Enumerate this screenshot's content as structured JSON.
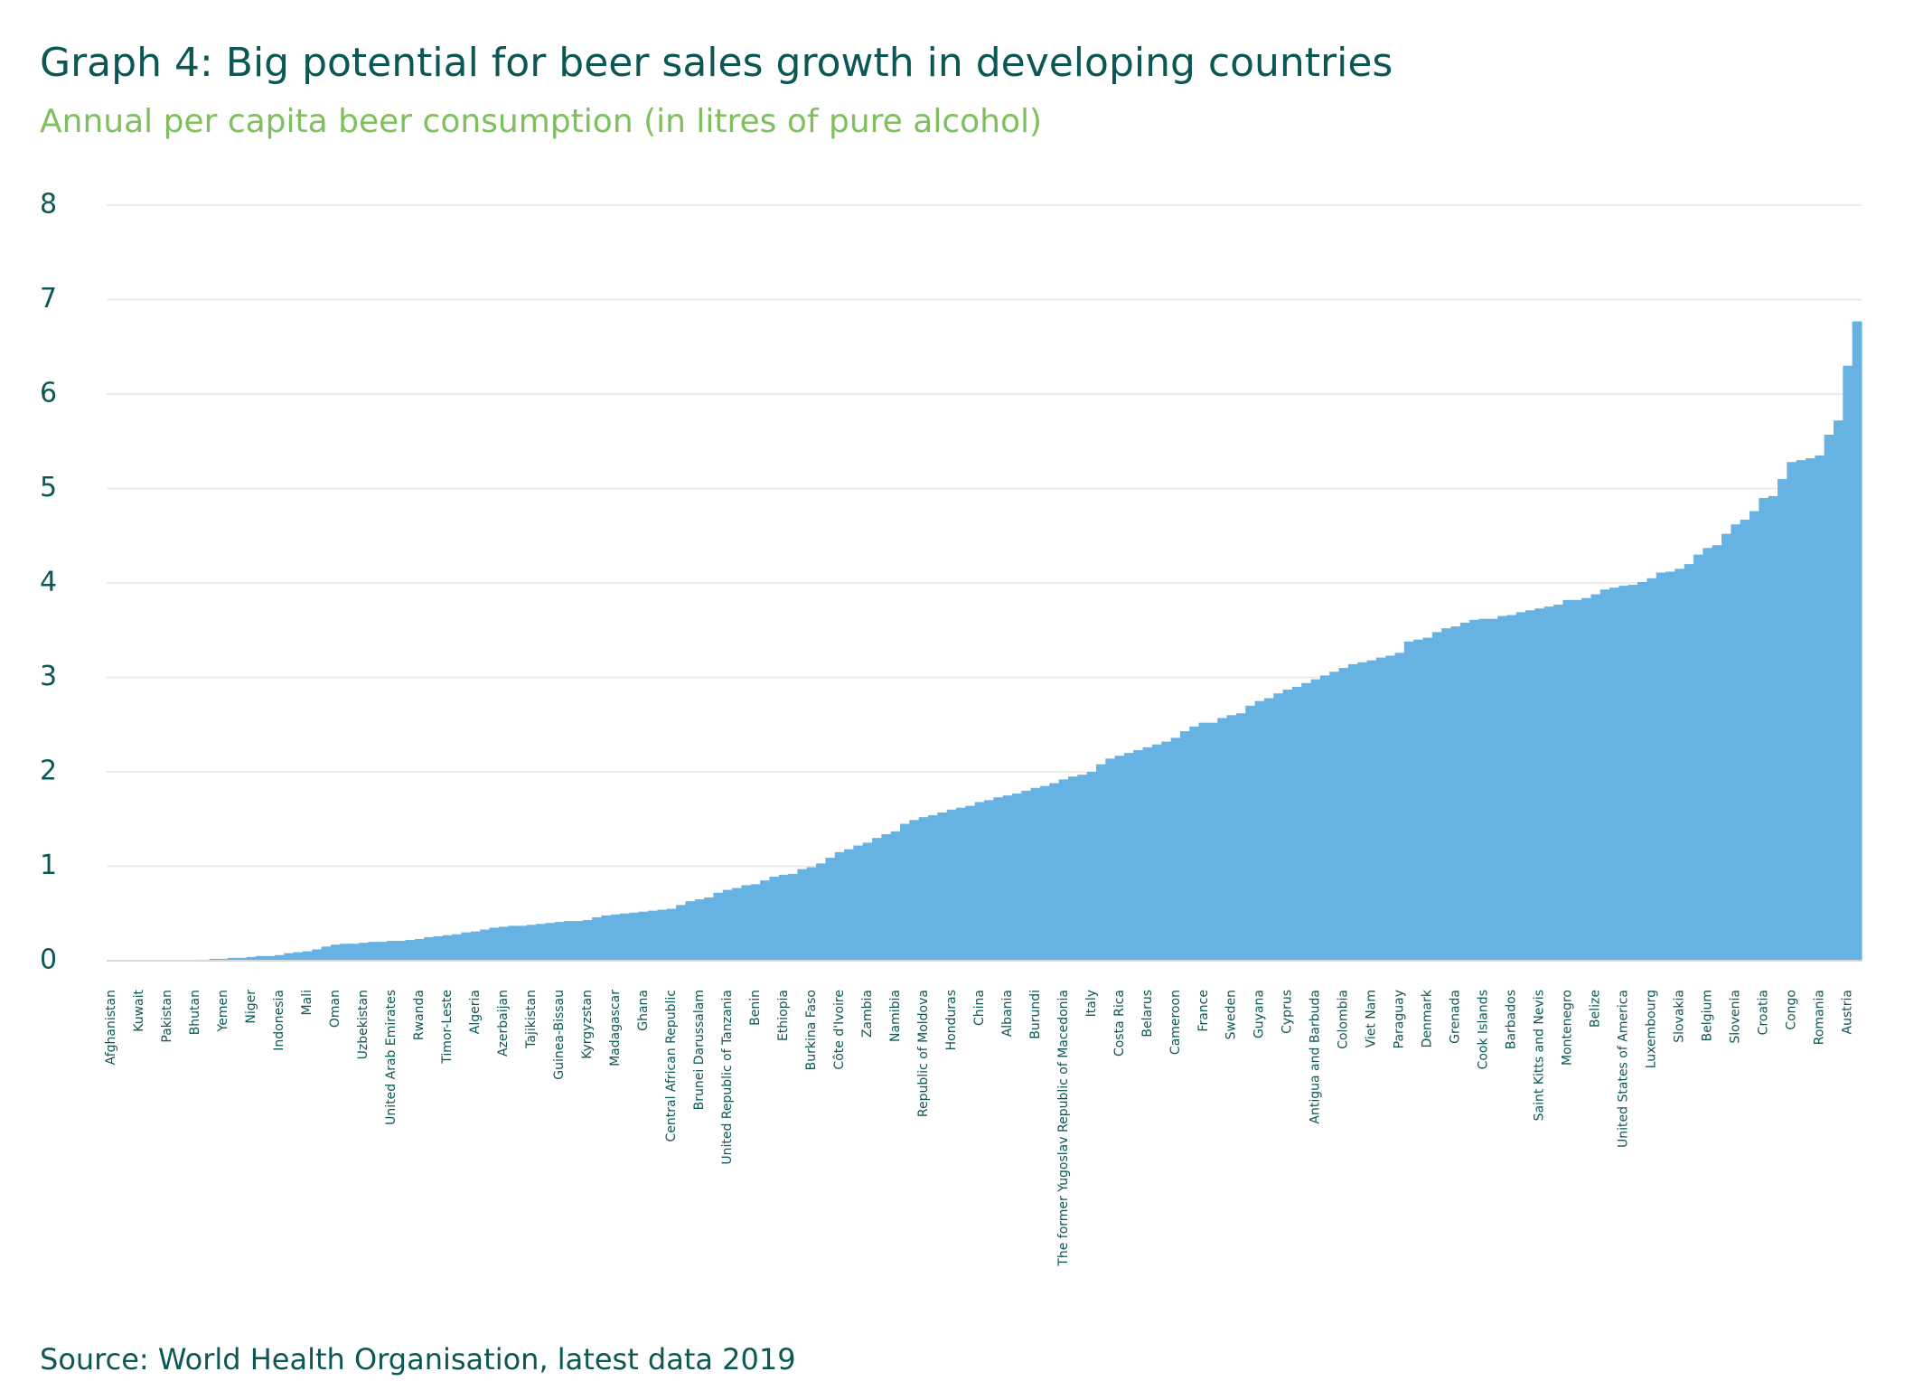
{
  "chart_data": {
    "type": "bar",
    "title": "Graph 4: Big potential for beer sales growth in developing countries",
    "subtitle": "Annual per capita beer consumption (in litres of pure alcohol)",
    "source": "Source: World Health Organisation, latest data 2019",
    "color": "#66b2e3",
    "grid": true,
    "ylim": [
      0,
      8
    ],
    "yticks": [
      0,
      1,
      2,
      3,
      4,
      5,
      6,
      7,
      8
    ],
    "categories": [
      "Afghanistan",
      null,
      null,
      "Kuwait",
      null,
      null,
      "Pakistan",
      null,
      null,
      "Bhutan",
      null,
      null,
      "Yemen",
      null,
      null,
      "Niger",
      null,
      null,
      "Indonesia",
      null,
      null,
      "Mali",
      null,
      null,
      "Oman",
      null,
      null,
      "Uzbekistan",
      null,
      null,
      "United Arab Emirates",
      null,
      null,
      "Rwanda",
      null,
      null,
      "Timor-Leste",
      null,
      null,
      "Algeria",
      null,
      null,
      "Azerbaijan",
      null,
      null,
      "Tajikistan",
      null,
      null,
      "Guinea-Bissau",
      null,
      null,
      "Kyrgyzstan",
      null,
      null,
      "Madagascar",
      null,
      null,
      "Ghana",
      null,
      null,
      "Central African Republic",
      null,
      null,
      "Brunei Darussalam",
      null,
      null,
      "United Republic of Tanzania",
      null,
      null,
      "Benin",
      null,
      null,
      "Ethiopia",
      null,
      null,
      "Burkina Faso",
      null,
      null,
      "Côte d'Ivoire",
      null,
      null,
      "Zambia",
      null,
      null,
      "Namibia",
      null,
      null,
      "Republic of Moldova",
      null,
      null,
      "Honduras",
      null,
      null,
      "China",
      null,
      null,
      "Albania",
      null,
      null,
      "Burundi",
      null,
      null,
      "The former Yugoslav Republic of Macedonia",
      null,
      null,
      "Italy",
      null,
      null,
      "Costa Rica",
      null,
      null,
      "Belarus",
      null,
      null,
      "Cameroon",
      null,
      null,
      "France",
      null,
      null,
      "Sweden",
      null,
      null,
      "Guyana",
      null,
      null,
      "Cyprus",
      null,
      null,
      "Antigua and Barbuda",
      null,
      null,
      "Colombia",
      null,
      null,
      "Viet Nam",
      null,
      null,
      "Paraguay",
      null,
      null,
      "Denmark",
      null,
      null,
      "Grenada",
      null,
      null,
      "Cook Islands",
      null,
      null,
      "Barbados",
      null,
      null,
      "Saint Kitts and Nevis",
      null,
      null,
      "Montenegro",
      null,
      null,
      "Belize",
      null,
      null,
      "United States of America",
      null,
      null,
      "Luxembourg",
      null,
      null,
      "Slovakia",
      null,
      null,
      "Belgium",
      null,
      null,
      "Slovenia",
      null,
      null,
      "Croatia",
      null,
      null,
      "Congo",
      null,
      null,
      "Romania",
      null,
      null,
      "Austria",
      null
    ],
    "values": [
      0,
      0,
      0,
      0,
      0,
      0,
      0,
      0,
      0,
      0.01,
      0.01,
      0.02,
      0.02,
      0.03,
      0.03,
      0.04,
      0.05,
      0.05,
      0.06,
      0.08,
      0.09,
      0.1,
      0.12,
      0.15,
      0.17,
      0.18,
      0.18,
      0.19,
      0.2,
      0.2,
      0.21,
      0.21,
      0.22,
      0.23,
      0.25,
      0.26,
      0.27,
      0.28,
      0.3,
      0.31,
      0.33,
      0.35,
      0.36,
      0.37,
      0.37,
      0.38,
      0.39,
      0.4,
      0.41,
      0.42,
      0.42,
      0.43,
      0.46,
      0.48,
      0.49,
      0.5,
      0.51,
      0.52,
      0.53,
      0.54,
      0.55,
      0.59,
      0.63,
      0.65,
      0.67,
      0.72,
      0.75,
      0.77,
      0.8,
      0.81,
      0.85,
      0.89,
      0.91,
      0.92,
      0.97,
      0.99,
      1.03,
      1.09,
      1.15,
      1.18,
      1.22,
      1.25,
      1.3,
      1.34,
      1.37,
      1.45,
      1.49,
      1.52,
      1.54,
      1.57,
      1.6,
      1.62,
      1.64,
      1.68,
      1.7,
      1.73,
      1.75,
      1.77,
      1.8,
      1.83,
      1.85,
      1.88,
      1.92,
      1.95,
      1.97,
      2.0,
      2.08,
      2.14,
      2.17,
      2.2,
      2.23,
      2.26,
      2.29,
      2.32,
      2.36,
      2.43,
      2.48,
      2.52,
      2.52,
      2.57,
      2.6,
      2.62,
      2.7,
      2.75,
      2.78,
      2.83,
      2.87,
      2.9,
      2.94,
      2.98,
      3.02,
      3.06,
      3.1,
      3.14,
      3.16,
      3.18,
      3.21,
      3.23,
      3.26,
      3.38,
      3.4,
      3.42,
      3.48,
      3.52,
      3.54,
      3.58,
      3.61,
      3.62,
      3.62,
      3.65,
      3.66,
      3.69,
      3.71,
      3.73,
      3.75,
      3.77,
      3.82,
      3.82,
      3.84,
      3.88,
      3.93,
      3.95,
      3.97,
      3.98,
      4.01,
      4.05,
      4.11,
      4.12,
      4.15,
      4.2,
      4.3,
      4.37,
      4.4,
      4.52,
      4.62,
      4.67,
      4.76,
      4.9,
      4.92,
      5.1,
      5.28,
      5.3,
      5.32,
      5.35,
      5.57,
      5.72,
      6.3,
      6.77
    ]
  }
}
